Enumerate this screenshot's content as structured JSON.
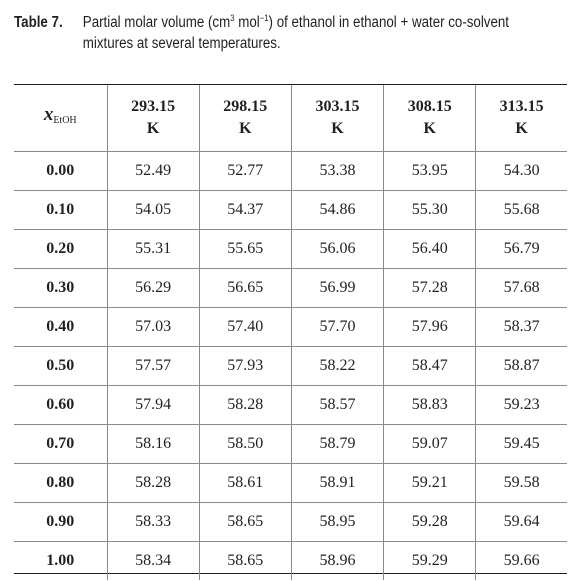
{
  "caption": {
    "label": "Table 7.",
    "text_prefix": "Partial molar volume (cm",
    "sup1": "3",
    "text_mid": " mol",
    "sup2": "−1",
    "text_suffix": ") of ethanol in ethanol + water co-solvent",
    "text_line2": "mixtures at several temperatures."
  },
  "table": {
    "corner_symbol": "x",
    "corner_subscript": "EtOH",
    "columns": [
      "293.15 K",
      "298.15 K",
      "303.15 K",
      "308.15 K",
      "313.15 K"
    ],
    "rows": [
      {
        "x": "0.00",
        "values": [
          "52.49",
          "52.77",
          "53.38",
          "53.95",
          "54.30"
        ]
      },
      {
        "x": "0.10",
        "values": [
          "54.05",
          "54.37",
          "54.86",
          "55.30",
          "55.68"
        ]
      },
      {
        "x": "0.20",
        "values": [
          "55.31",
          "55.65",
          "56.06",
          "56.40",
          "56.79"
        ]
      },
      {
        "x": "0.30",
        "values": [
          "56.29",
          "56.65",
          "56.99",
          "57.28",
          "57.68"
        ]
      },
      {
        "x": "0.40",
        "values": [
          "57.03",
          "57.40",
          "57.70",
          "57.96",
          "58.37"
        ]
      },
      {
        "x": "0.50",
        "values": [
          "57.57",
          "57.93",
          "58.22",
          "58.47",
          "58.87"
        ]
      },
      {
        "x": "0.60",
        "values": [
          "57.94",
          "58.28",
          "58.57",
          "58.83",
          "59.23"
        ]
      },
      {
        "x": "0.70",
        "values": [
          "58.16",
          "58.50",
          "58.79",
          "59.07",
          "59.45"
        ]
      },
      {
        "x": "0.80",
        "values": [
          "58.28",
          "58.61",
          "58.91",
          "59.21",
          "59.58"
        ]
      },
      {
        "x": "0.90",
        "values": [
          "58.33",
          "58.65",
          "58.95",
          "59.28",
          "59.64"
        ]
      },
      {
        "x": "1.00",
        "values": [
          "58.34",
          "58.65",
          "58.96",
          "59.29",
          "59.66"
        ]
      }
    ]
  }
}
